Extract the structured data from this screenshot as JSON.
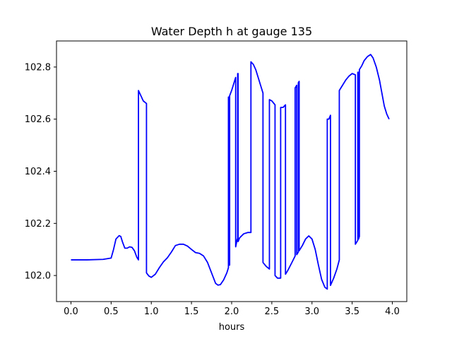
{
  "chart_data": {
    "type": "line",
    "title": "Water Depth h at gauge 135",
    "xlabel": "hours",
    "ylabel": "",
    "xlim": [
      -0.18,
      4.18
    ],
    "ylim": [
      101.9,
      102.9
    ],
    "xticks": [
      0.0,
      0.5,
      1.0,
      1.5,
      2.0,
      2.5,
      3.0,
      3.5,
      4.0
    ],
    "xtick_labels": [
      "0.0",
      "0.5",
      "1.0",
      "1.5",
      "2.0",
      "2.5",
      "3.0",
      "3.5",
      "4.0"
    ],
    "yticks": [
      102.0,
      102.2,
      102.4,
      102.6,
      102.8
    ],
    "ytick_labels": [
      "102.0",
      "102.2",
      "102.4",
      "102.6",
      "102.8"
    ],
    "grid": false,
    "series": [
      {
        "color": "#0000ff",
        "points": [
          [
            0.0,
            102.06
          ],
          [
            0.2,
            102.06
          ],
          [
            0.4,
            102.062
          ],
          [
            0.5,
            102.067
          ],
          [
            0.53,
            102.1
          ],
          [
            0.56,
            102.14
          ],
          [
            0.6,
            102.153
          ],
          [
            0.62,
            102.15
          ],
          [
            0.64,
            102.13
          ],
          [
            0.67,
            102.105
          ],
          [
            0.7,
            102.105
          ],
          [
            0.73,
            102.11
          ],
          [
            0.76,
            102.108
          ],
          [
            0.79,
            102.095
          ],
          [
            0.82,
            102.07
          ],
          [
            0.84,
            102.06
          ],
          [
            0.84,
            102.71
          ],
          [
            0.87,
            102.69
          ],
          [
            0.9,
            102.67
          ],
          [
            0.94,
            102.66
          ],
          [
            0.94,
            102.01
          ],
          [
            0.97,
            101.998
          ],
          [
            1.0,
            101.993
          ],
          [
            1.05,
            102.005
          ],
          [
            1.1,
            102.03
          ],
          [
            1.15,
            102.052
          ],
          [
            1.2,
            102.068
          ],
          [
            1.25,
            102.09
          ],
          [
            1.3,
            102.115
          ],
          [
            1.35,
            102.12
          ],
          [
            1.4,
            102.12
          ],
          [
            1.45,
            102.113
          ],
          [
            1.5,
            102.1
          ],
          [
            1.55,
            102.088
          ],
          [
            1.6,
            102.085
          ],
          [
            1.65,
            102.075
          ],
          [
            1.7,
            102.05
          ],
          [
            1.75,
            102.01
          ],
          [
            1.8,
            101.97
          ],
          [
            1.83,
            101.963
          ],
          [
            1.86,
            101.965
          ],
          [
            1.9,
            101.983
          ],
          [
            1.94,
            102.01
          ],
          [
            1.96,
            102.03
          ],
          [
            1.96,
            102.685
          ],
          [
            1.97,
            102.685
          ],
          [
            1.97,
            102.04
          ],
          [
            1.975,
            102.04
          ],
          [
            1.975,
            102.69
          ],
          [
            2.0,
            102.71
          ],
          [
            2.03,
            102.74
          ],
          [
            2.05,
            102.76
          ],
          [
            2.05,
            102.11
          ],
          [
            2.07,
            102.14
          ],
          [
            2.075,
            102.14
          ],
          [
            2.075,
            102.775
          ],
          [
            2.08,
            102.775
          ],
          [
            2.08,
            102.13
          ],
          [
            2.1,
            102.145
          ],
          [
            2.15,
            102.16
          ],
          [
            2.2,
            102.165
          ],
          [
            2.24,
            102.165
          ],
          [
            2.24,
            102.82
          ],
          [
            2.27,
            102.81
          ],
          [
            2.3,
            102.79
          ],
          [
            2.33,
            102.76
          ],
          [
            2.36,
            102.73
          ],
          [
            2.39,
            102.7
          ],
          [
            2.39,
            102.05
          ],
          [
            2.43,
            102.035
          ],
          [
            2.47,
            102.025
          ],
          [
            2.47,
            102.675
          ],
          [
            2.5,
            102.67
          ],
          [
            2.54,
            102.655
          ],
          [
            2.54,
            102.0
          ],
          [
            2.57,
            101.99
          ],
          [
            2.61,
            101.99
          ],
          [
            2.61,
            102.645
          ],
          [
            2.64,
            102.645
          ],
          [
            2.67,
            102.655
          ],
          [
            2.67,
            102.005
          ],
          [
            2.7,
            102.02
          ],
          [
            2.75,
            102.05
          ],
          [
            2.79,
            102.075
          ],
          [
            2.79,
            102.72
          ],
          [
            2.81,
            102.73
          ],
          [
            2.81,
            102.08
          ],
          [
            2.83,
            102.09
          ],
          [
            2.83,
            102.74
          ],
          [
            2.84,
            102.745
          ],
          [
            2.84,
            102.095
          ],
          [
            2.88,
            102.115
          ],
          [
            2.92,
            102.14
          ],
          [
            2.96,
            102.152
          ],
          [
            3.0,
            102.14
          ],
          [
            3.04,
            102.1
          ],
          [
            3.08,
            102.04
          ],
          [
            3.12,
            101.985
          ],
          [
            3.16,
            101.955
          ],
          [
            3.19,
            101.948
          ],
          [
            3.19,
            102.6
          ],
          [
            3.21,
            102.6
          ],
          [
            3.23,
            102.615
          ],
          [
            3.23,
            101.962
          ],
          [
            3.27,
            101.99
          ],
          [
            3.31,
            102.025
          ],
          [
            3.34,
            102.06
          ],
          [
            3.34,
            102.71
          ],
          [
            3.38,
            102.73
          ],
          [
            3.42,
            102.75
          ],
          [
            3.46,
            102.765
          ],
          [
            3.5,
            102.775
          ],
          [
            3.54,
            102.77
          ],
          [
            3.54,
            102.12
          ],
          [
            3.57,
            102.135
          ],
          [
            3.57,
            102.78
          ],
          [
            3.58,
            102.78
          ],
          [
            3.58,
            102.14
          ],
          [
            3.59,
            102.15
          ],
          [
            3.59,
            102.79
          ],
          [
            3.62,
            102.805
          ],
          [
            3.65,
            102.825
          ],
          [
            3.69,
            102.84
          ],
          [
            3.73,
            102.848
          ],
          [
            3.76,
            102.835
          ],
          [
            3.8,
            102.8
          ],
          [
            3.84,
            102.75
          ],
          [
            3.87,
            102.7
          ],
          [
            3.9,
            102.65
          ],
          [
            3.93,
            102.62
          ],
          [
            3.96,
            102.6
          ]
        ]
      }
    ]
  }
}
